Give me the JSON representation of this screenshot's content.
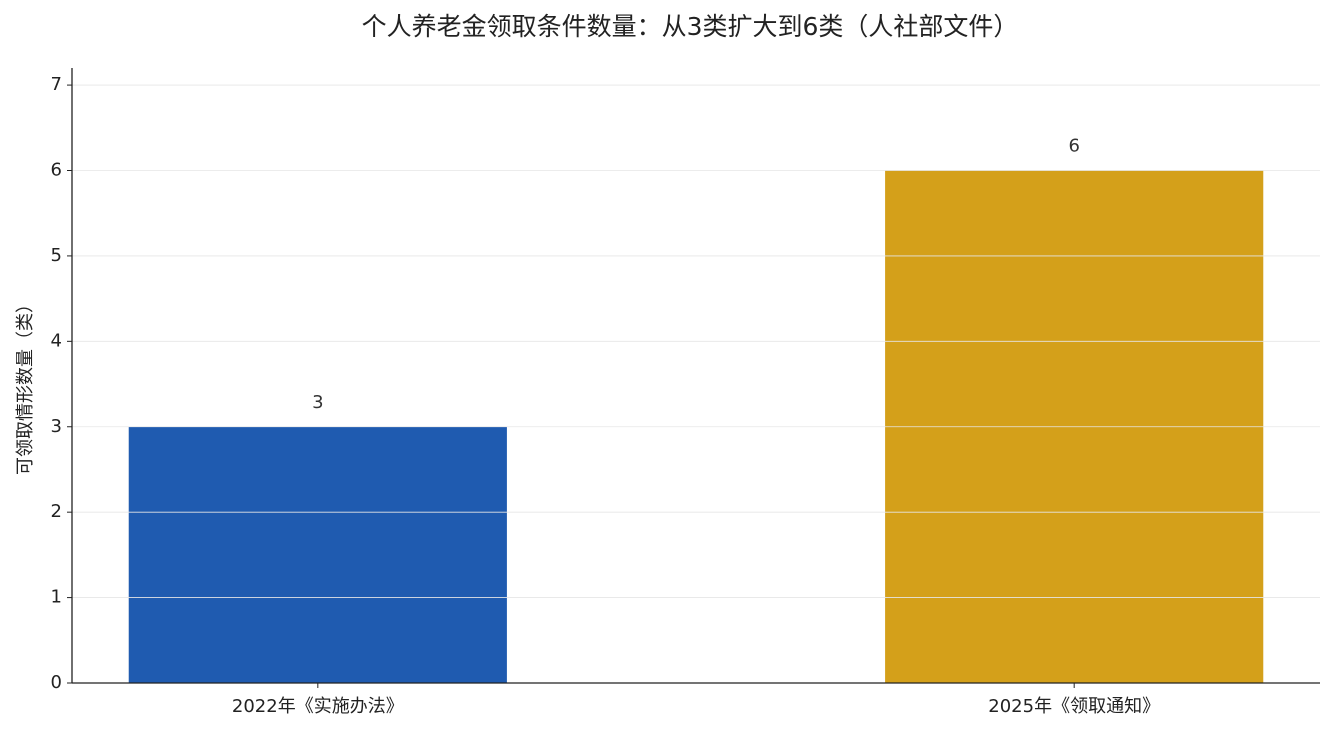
{
  "chart_data": {
    "type": "bar",
    "title": "个人养老金领取条件数量：从3类扩大到6类（人社部文件）",
    "y_label": "可领取情形数量（类）",
    "categories": [
      "2022年《实施办法》",
      "2025年《领取通知》"
    ],
    "values": [
      3,
      6
    ],
    "colors": [
      "#1f5bb0",
      "#d4a01a"
    ],
    "ylim": [
      0,
      7.2
    ],
    "yticks": [
      0,
      1,
      2,
      3,
      4,
      5,
      6,
      7
    ],
    "grid": true
  }
}
